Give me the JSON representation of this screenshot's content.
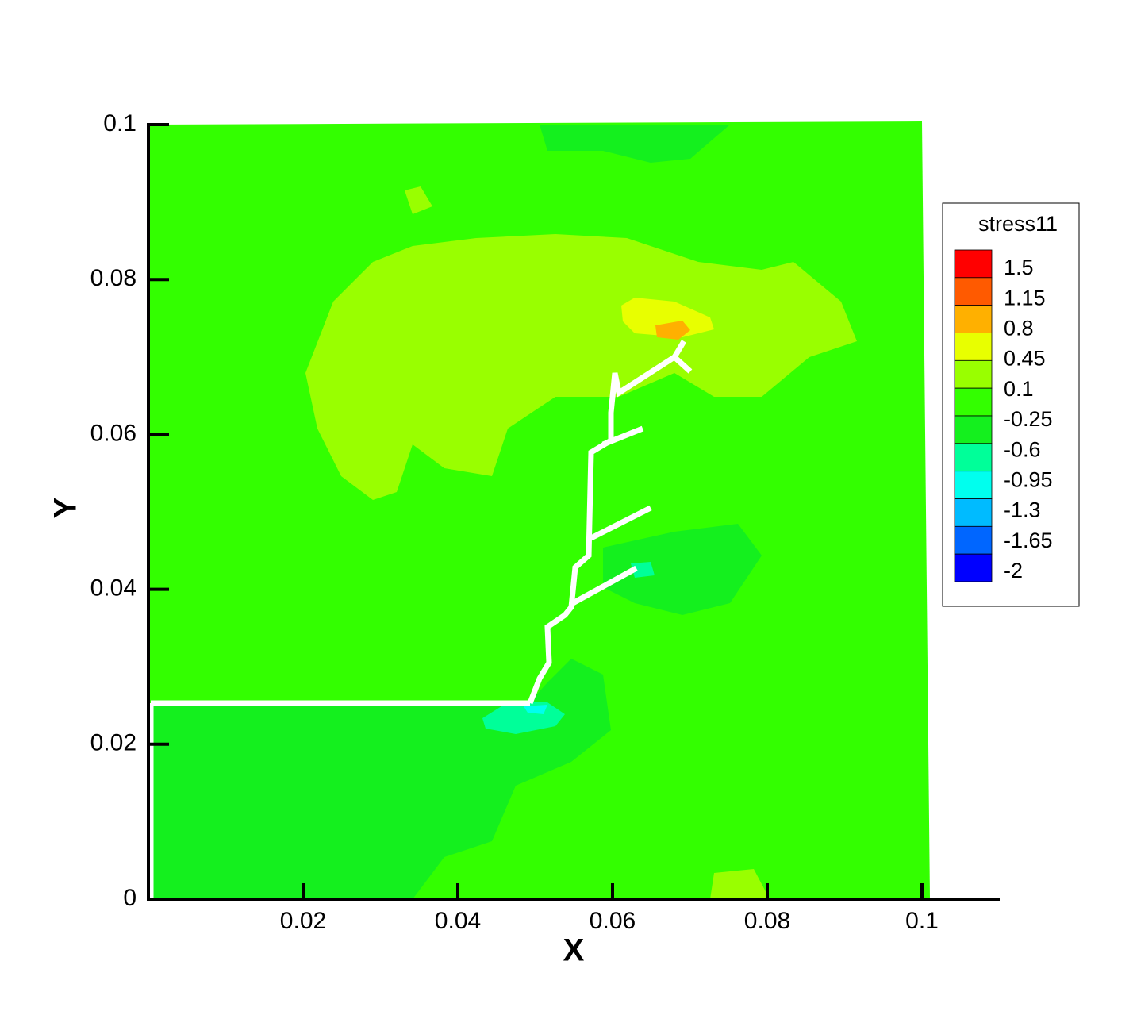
{
  "chart_data": {
    "type": "contour",
    "xlabel": "X",
    "ylabel": "Y",
    "xlim": [
      0,
      0.11
    ],
    "ylim": [
      0,
      0.1
    ],
    "xticks": [
      0.02,
      0.04,
      0.06,
      0.08,
      0.1
    ],
    "yticks": [
      0,
      0.02,
      0.04,
      0.06,
      0.08,
      0.1
    ],
    "legend": {
      "title": "stress11",
      "levels": [
        1.5,
        1.15,
        0.8,
        0.45,
        0.1,
        -0.25,
        -0.6,
        -0.95,
        -1.3,
        -1.65,
        -2
      ],
      "level_colors": [
        "#ff0000",
        "#ff5a00",
        "#ffb000",
        "#e8ff00",
        "#99ff00",
        "#33ff00",
        "#14f01e",
        "#00ff99",
        "#00ffee",
        "#00bbff",
        "#0066ff",
        "#0000ff"
      ]
    }
  }
}
